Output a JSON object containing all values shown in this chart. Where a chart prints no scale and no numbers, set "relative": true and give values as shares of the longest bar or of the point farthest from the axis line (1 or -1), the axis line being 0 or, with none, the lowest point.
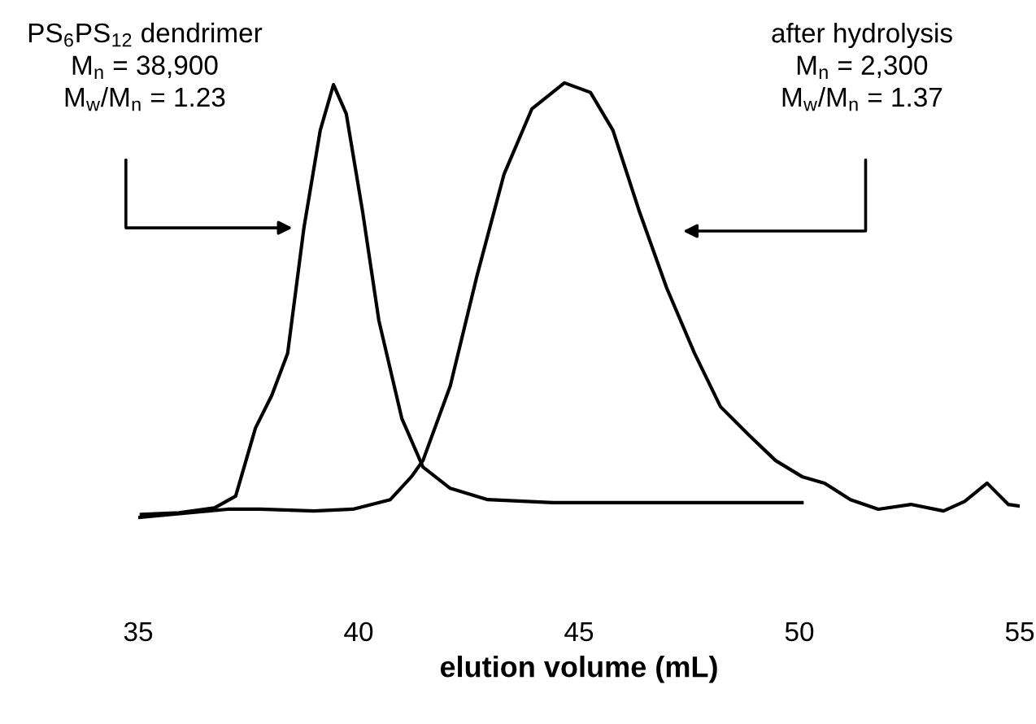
{
  "chart_data": {
    "type": "line",
    "relative": true,
    "xlabel": "elution volume (mL)",
    "xlim": [
      35,
      55
    ],
    "xticks": [
      35,
      40,
      45,
      50,
      55
    ],
    "grid": false,
    "marker": "none",
    "line_style": "solid",
    "annotations": [
      "PS$_{6}$PS$_{12}$ dendrimer\nM$_{n}$ = 38,900\nM$_{w}$/M$_{n}$ = 1.23",
      "after hydrolysis\nM$_{n}$ = 2,300\nM$_{w}$/M$_{n}$ = 1.37"
    ],
    "series": [
      {
        "color": "#000000",
        "x": [
          35.07,
          35.92,
          36.73,
          37.21,
          37.66,
          38.03,
          38.39,
          38.76,
          39.13,
          39.43,
          39.72,
          40.09,
          40.46,
          40.98,
          41.46,
          42.08,
          42.93,
          44.41,
          47.36,
          50.06
        ],
        "values": [
          0.007,
          0.011,
          0.022,
          0.049,
          0.206,
          0.281,
          0.378,
          0.667,
          0.891,
          0.996,
          0.929,
          0.704,
          0.453,
          0.228,
          0.116,
          0.067,
          0.041,
          0.034,
          0.034,
          0.034
        ]
      },
      {
        "color": "#000000",
        "x": [
          35.0,
          37.03,
          37.77,
          38.99,
          39.87,
          40.72,
          41.2,
          41.46,
          42.08,
          42.68,
          43.3,
          43.93,
          44.67,
          45.26,
          45.77,
          46.37,
          46.99,
          47.62,
          48.21,
          48.84,
          49.46,
          50.06,
          50.57,
          51.16,
          51.79,
          52.53,
          53.27,
          53.75,
          54.26,
          54.74,
          55.0
        ],
        "values": [
          0,
          0.019,
          0.019,
          0.015,
          0.019,
          0.041,
          0.094,
          0.131,
          0.303,
          0.554,
          0.79,
          0.94,
          1.0,
          0.978,
          0.891,
          0.704,
          0.528,
          0.378,
          0.255,
          0.191,
          0.131,
          0.094,
          0.079,
          0.041,
          0.019,
          0.03,
          0.015,
          0.037,
          0.079,
          0.03,
          0.026
        ]
      }
    ]
  }
}
